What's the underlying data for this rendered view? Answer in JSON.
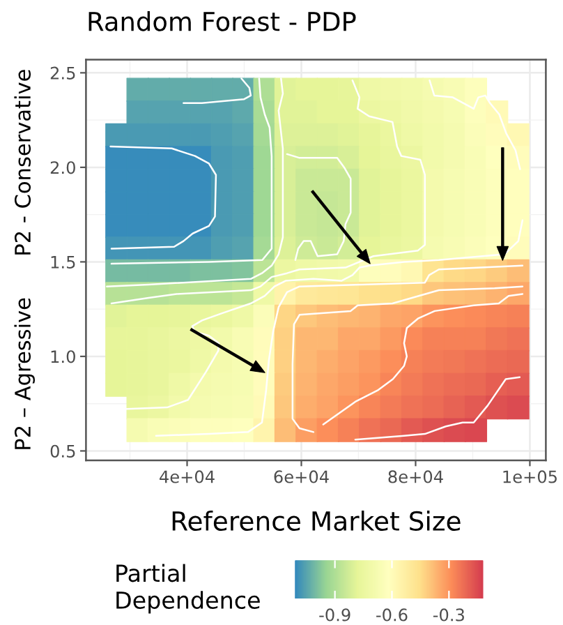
{
  "chart_data": {
    "type": "scatter",
    "title": "Random Forest - PDP",
    "xlabel": "Reference Market Size",
    "ylabel": "P2 – Agressive      P2 - Conservative",
    "clabel": "Partial\nDependence",
    "marker": "square",
    "grid": true,
    "xlim": [
      22300,
      102800
    ],
    "ylim": [
      0.45,
      2.57
    ],
    "xticks": [
      {
        "value": 40000,
        "label": "4e+04"
      },
      {
        "value": 60000,
        "label": "6e+04"
      },
      {
        "value": 80000,
        "label": "8e+04"
      },
      {
        "value": 100000,
        "label": "1e+05"
      }
    ],
    "yticks": [
      0.5,
      {
        "value": 1,
        "label": "1.0"
      },
      1.5,
      {
        "value": 2,
        "label": "2.0"
      },
      2.5
    ],
    "clim": [
      -1.11,
      -0.12
    ],
    "cticks": [
      -0.9,
      -0.6,
      -0.3
    ],
    "x": [
      27650,
      31350,
      35050,
      38750,
      42450,
      46150,
      49850,
      53550,
      57250,
      60950,
      64650,
      68350,
      72050,
      75750,
      79450,
      83150,
      86850,
      90550,
      94250,
      97950
    ],
    "series": [
      {
        "values": [
          null,
          2.41,
          2.41,
          2.41,
          2.41,
          2.41,
          2.41,
          2.41,
          2.41,
          2.41,
          2.41,
          2.41,
          2.41,
          2.41,
          2.41,
          2.41,
          2.41,
          2.41,
          null,
          null
        ],
        "cvalues": [
          null,
          -1.03,
          -1.03,
          -1.03,
          -1.03,
          -1.03,
          -1.03,
          -0.9,
          -0.79,
          -0.78,
          -0.78,
          -0.77,
          -0.72,
          -0.71,
          -0.7,
          -0.68,
          -0.66,
          -0.63,
          null,
          null
        ],
        "colors": [
          null,
          "#64ada9",
          "#64ada9",
          "#64ada9",
          "#64ada9",
          "#64ada9",
          "#64ada9",
          "#aede95",
          "#e1f398",
          "#e6f598",
          "#e6f598",
          "#e8f69a",
          "#eff9a6",
          "#f1f9a9",
          "#f2faab",
          "#f5fbb0",
          "#f8fcb4",
          "#fdfebb",
          null,
          null
        ]
      },
      {
        "values": [
          null,
          2.29,
          2.29,
          2.29,
          2.29,
          2.29,
          2.29,
          2.29,
          2.29,
          2.29,
          2.29,
          2.29,
          2.29,
          2.29,
          2.29,
          2.29,
          2.29,
          2.29,
          2.29,
          null
        ],
        "cvalues": [
          null,
          -1.05,
          -1.05,
          -1.05,
          -1.05,
          -1.05,
          -1.04,
          -0.91,
          -0.79,
          -0.79,
          -0.78,
          -0.78,
          -0.74,
          -0.73,
          -0.71,
          -0.69,
          -0.67,
          -0.63,
          -0.59,
          null
        ],
        "colors": [
          null,
          "#57a4ae",
          "#57a4ae",
          "#57a4ae",
          "#57a4ae",
          "#57a4ae",
          "#5ea9ac",
          "#a9dc95",
          "#e1f398",
          "#e1f398",
          "#e6f598",
          "#e6f598",
          "#ecf7a1",
          "#eef8a4",
          "#f1f9a9",
          "#f4faad",
          "#f7fcb2",
          "#fdfebb",
          "#fffab7",
          null
        ]
      },
      {
        "values": [
          2.17,
          2.17,
          2.17,
          2.17,
          2.17,
          2.17,
          2.17,
          2.17,
          2.17,
          2.17,
          2.17,
          2.17,
          2.17,
          2.17,
          2.17,
          2.17,
          2.17,
          2.17,
          2.17,
          2.17
        ],
        "cvalues": [
          -1.07,
          -1.07,
          -1.07,
          -1.07,
          -1.07,
          -1.06,
          -1.05,
          -0.92,
          -0.8,
          -0.8,
          -0.8,
          -0.79,
          -0.77,
          -0.75,
          -0.72,
          -0.7,
          -0.68,
          -0.64,
          -0.6,
          -0.58
        ],
        "colors": [
          "#4b9bb3",
          "#4b9bb3",
          "#4b9bb3",
          "#4b9bb3",
          "#4b9bb3",
          "#519fb1",
          "#57a4ae",
          "#a5da95",
          "#ddf198",
          "#ddf198",
          "#ddf198",
          "#e1f398",
          "#e8f69a",
          "#ebf79f",
          "#eff9a6",
          "#f2faab",
          "#f5fbb0",
          "#fbfdb9",
          "#fffcba",
          "#fff8b4"
        ]
      },
      {
        "values": [
          2.05,
          2.05,
          2.05,
          2.05,
          2.05,
          2.05,
          2.05,
          2.05,
          2.05,
          2.05,
          2.05,
          2.05,
          2.05,
          2.05,
          2.05,
          2.05,
          2.05,
          2.05,
          2.05,
          2.05
        ],
        "cvalues": [
          -1.1,
          -1.1,
          -1.1,
          -1.1,
          -1.1,
          -1.07,
          -1.06,
          -0.93,
          -0.81,
          -0.82,
          -0.82,
          -0.81,
          -0.78,
          -0.76,
          -0.74,
          -0.7,
          -0.68,
          -0.65,
          -0.62,
          -0.6
        ],
        "colors": [
          "#388dbb",
          "#388dbb",
          "#388dbb",
          "#388dbb",
          "#388dbb",
          "#4b9bb3",
          "#519fb1",
          "#a0d894",
          "#d8ef97",
          "#d3ed97",
          "#d3ed97",
          "#d8ef97",
          "#e6f598",
          "#e9f69d",
          "#ecf7a1",
          "#f2faab",
          "#f5fbb0",
          "#fafdb7",
          "#feffbe",
          "#fffcba"
        ]
      },
      {
        "values": [
          1.93,
          1.93,
          1.93,
          1.93,
          1.93,
          1.93,
          1.93,
          1.93,
          1.93,
          1.93,
          1.93,
          1.93,
          1.93,
          1.93,
          1.93,
          1.93,
          1.93,
          1.93,
          1.93,
          1.93
        ],
        "cvalues": [
          -1.1,
          -1.1,
          -1.1,
          -1.1,
          -1.1,
          -1.07,
          -1.06,
          -0.93,
          -0.81,
          -0.84,
          -0.84,
          -0.84,
          -0.79,
          -0.77,
          -0.75,
          -0.69,
          -0.67,
          -0.65,
          -0.63,
          -0.61
        ],
        "colors": [
          "#388dbb",
          "#388dbb",
          "#388dbb",
          "#388dbb",
          "#388dbb",
          "#4b9bb3",
          "#519fb1",
          "#a0d894",
          "#d8ef97",
          "#cae997",
          "#cae997",
          "#cae997",
          "#e1f398",
          "#e8f69a",
          "#ebf79f",
          "#f4faad",
          "#f7fcb2",
          "#fafdb7",
          "#fdfebb",
          "#fffebd"
        ]
      },
      {
        "values": [
          1.81,
          1.81,
          1.81,
          1.81,
          1.81,
          1.81,
          1.81,
          1.81,
          1.81,
          1.81,
          1.81,
          1.81,
          1.81,
          1.81,
          1.81,
          1.81,
          1.81,
          1.81,
          1.81,
          1.81
        ],
        "cvalues": [
          -1.1,
          -1.1,
          -1.1,
          -1.1,
          -1.1,
          -1.07,
          -1.06,
          -0.93,
          -0.81,
          -0.84,
          -0.85,
          -0.84,
          -0.79,
          -0.77,
          -0.75,
          -0.69,
          -0.67,
          -0.65,
          -0.63,
          -0.61
        ],
        "colors": [
          "#388dbb",
          "#388dbb",
          "#388dbb",
          "#388dbb",
          "#388dbb",
          "#4b9bb3",
          "#519fb1",
          "#a0d894",
          "#d8ef97",
          "#cae997",
          "#c5e796",
          "#cae997",
          "#e1f398",
          "#e8f69a",
          "#ebf79f",
          "#f4faad",
          "#f7fcb2",
          "#fafdb7",
          "#fdfebb",
          "#fffebd"
        ]
      },
      {
        "values": [
          1.69,
          1.69,
          1.69,
          1.69,
          1.69,
          1.69,
          1.69,
          1.69,
          1.69,
          1.69,
          1.69,
          1.69,
          1.69,
          1.69,
          1.69,
          1.69,
          1.69,
          1.69,
          1.69,
          1.69
        ],
        "cvalues": [
          -1.1,
          -1.1,
          -1.1,
          -1.1,
          -1.1,
          -1.07,
          -1.06,
          -0.93,
          -0.81,
          -0.84,
          -0.85,
          -0.84,
          -0.79,
          -0.77,
          -0.75,
          -0.69,
          -0.67,
          -0.65,
          -0.63,
          -0.61
        ],
        "colors": [
          "#388dbb",
          "#388dbb",
          "#388dbb",
          "#388dbb",
          "#388dbb",
          "#4b9bb3",
          "#519fb1",
          "#a0d894",
          "#d8ef97",
          "#cae997",
          "#c5e796",
          "#cae997",
          "#e1f398",
          "#e8f69a",
          "#ebf79f",
          "#f4faad",
          "#f7fcb2",
          "#fafdb7",
          "#fdfebb",
          "#fffebd"
        ]
      },
      {
        "values": [
          1.57,
          1.57,
          1.57,
          1.57,
          1.57,
          1.57,
          1.57,
          1.57,
          1.57,
          1.57,
          1.57,
          1.57,
          1.57,
          1.57,
          1.57,
          1.57,
          1.57,
          1.57,
          1.57,
          1.57
        ],
        "cvalues": [
          -1.08,
          -1.08,
          -1.08,
          -1.08,
          -1.08,
          -1.06,
          -1.05,
          -0.92,
          -0.8,
          -0.83,
          -0.84,
          -0.82,
          -0.78,
          -0.76,
          -0.74,
          -0.68,
          -0.66,
          -0.64,
          -0.62,
          -0.6
        ],
        "colors": [
          "#4596b6",
          "#4596b6",
          "#4596b6",
          "#4596b6",
          "#4596b6",
          "#519fb1",
          "#57a4ae",
          "#a5da95",
          "#ddf198",
          "#cfeb97",
          "#cae997",
          "#d3ed97",
          "#e6f598",
          "#e9f69d",
          "#ecf7a1",
          "#f5fbb0",
          "#f8fcb4",
          "#fbfdb9",
          "#feffbe",
          "#fffcba"
        ]
      },
      {
        "values": [
          1.45,
          1.45,
          1.45,
          1.45,
          1.45,
          1.45,
          1.45,
          1.45,
          1.45,
          1.45,
          1.45,
          1.45,
          1.45,
          1.45,
          1.45,
          1.45,
          1.45,
          1.45,
          1.45,
          1.45
        ],
        "cvalues": [
          -1.0,
          -1.0,
          -1.0,
          -1.0,
          -0.99,
          -0.99,
          -0.98,
          -0.87,
          -0.74,
          -0.72,
          -0.71,
          -0.7,
          -0.63,
          -0.6,
          -0.58,
          -0.47,
          -0.44,
          -0.43,
          -0.41,
          -0.38
        ],
        "colors": [
          "#77bba2",
          "#77bba2",
          "#77bba2",
          "#77bba2",
          "#7dc09f",
          "#7dc09f",
          "#83c59d",
          "#bce496",
          "#ecf7a1",
          "#eff9a6",
          "#f1f9a9",
          "#f2faab",
          "#fdfebb",
          "#fffcba",
          "#fff8b4",
          "#fee491",
          "#fedb88",
          "#fed685",
          "#fecc7f",
          "#fdbd76"
        ]
      },
      {
        "values": [
          1.33,
          1.33,
          1.33,
          1.33,
          1.33,
          1.33,
          1.33,
          1.33,
          1.33,
          1.33,
          1.33,
          1.33,
          1.33,
          1.33,
          1.33,
          1.33,
          1.33,
          1.33,
          1.33,
          1.33
        ],
        "cvalues": [
          -0.88,
          -0.88,
          -0.88,
          -0.87,
          -0.87,
          -0.87,
          -0.85,
          -0.72,
          -0.55,
          -0.5,
          -0.49,
          -0.48,
          -0.46,
          -0.45,
          -0.44,
          -0.4,
          -0.39,
          -0.38,
          -0.36,
          -0.34
        ],
        "colors": [
          "#b7e296",
          "#b7e296",
          "#b7e296",
          "#bce496",
          "#bce496",
          "#bce496",
          "#c5e796",
          "#eff9a6",
          "#fff3ab",
          "#fee99b",
          "#fee898",
          "#fee694",
          "#fee28e",
          "#fee08b",
          "#fedb88",
          "#fdc77c",
          "#fdc279",
          "#fdbd76",
          "#fdb370",
          "#fda96a"
        ]
      },
      {
        "values": [
          1.21,
          1.21,
          1.21,
          1.21,
          1.21,
          1.21,
          1.21,
          1.21,
          1.21,
          1.21,
          1.21,
          1.21,
          1.21,
          1.21,
          1.21,
          1.21,
          1.21,
          1.21,
          1.21,
          1.21
        ],
        "cvalues": [
          -0.79,
          -0.78,
          -0.78,
          -0.77,
          -0.76,
          -0.75,
          -0.72,
          -0.64,
          -0.43,
          -0.4,
          -0.38,
          -0.37,
          -0.36,
          -0.34,
          -0.33,
          -0.3,
          -0.29,
          -0.28,
          -0.27,
          -0.26
        ],
        "colors": [
          "#e1f398",
          "#e6f598",
          "#e6f598",
          "#e8f69a",
          "#e9f69d",
          "#ebf79f",
          "#eff9a6",
          "#fbfdb9",
          "#fed685",
          "#fdc77c",
          "#fdbd76",
          "#fdb873",
          "#fdb370",
          "#fda96a",
          "#fda467",
          "#fc955e",
          "#fc905b",
          "#fb8b59",
          "#f88658",
          "#f68157"
        ]
      },
      {
        "values": [
          1.09,
          1.09,
          1.09,
          1.09,
          1.09,
          1.09,
          1.09,
          1.09,
          1.09,
          1.09,
          1.09,
          1.09,
          1.09,
          1.09,
          1.09,
          1.09,
          1.09,
          1.09,
          1.09,
          1.09
        ],
        "cvalues": [
          -0.77,
          -0.77,
          -0.76,
          -0.74,
          -0.73,
          -0.7,
          -0.66,
          -0.6,
          -0.42,
          -0.37,
          -0.37,
          -0.34,
          -0.34,
          -0.31,
          -0.28,
          -0.26,
          -0.26,
          -0.26,
          -0.24,
          -0.23
        ],
        "colors": [
          "#e8f69a",
          "#e8f69a",
          "#e9f69d",
          "#ecf7a1",
          "#eef8a4",
          "#f2faab",
          "#f8fcb4",
          "#fffcba",
          "#fed182",
          "#fdb873",
          "#fdb873",
          "#fda96a",
          "#fda96a",
          "#fc9a61",
          "#fb8b59",
          "#f68157",
          "#f68157",
          "#f68157",
          "#f17756",
          "#ef7356"
        ]
      },
      {
        "values": [
          0.97,
          0.97,
          0.97,
          0.97,
          0.97,
          0.97,
          0.97,
          0.97,
          0.97,
          0.97,
          0.97,
          0.97,
          0.97,
          0.97,
          0.97,
          0.97,
          0.97,
          0.97,
          0.97,
          0.97
        ],
        "cvalues": [
          -0.78,
          -0.77,
          -0.76,
          -0.75,
          -0.72,
          -0.69,
          -0.67,
          -0.6,
          -0.42,
          -0.37,
          -0.35,
          -0.33,
          -0.31,
          -0.29,
          -0.26,
          -0.25,
          -0.24,
          -0.23,
          -0.22,
          -0.21
        ],
        "colors": [
          "#e6f598",
          "#e8f69a",
          "#e9f69d",
          "#ebf79f",
          "#eff9a6",
          "#f4faad",
          "#f7fcb2",
          "#fffcba",
          "#fed182",
          "#fdb873",
          "#fdae6d",
          "#fda467",
          "#fc9a61",
          "#fc905b",
          "#f68157",
          "#f47c57",
          "#f17756",
          "#ef7356",
          "#ed6e55",
          "#ea6954"
        ]
      },
      {
        "values": [
          0.85,
          0.85,
          0.85,
          0.85,
          0.85,
          0.85,
          0.85,
          0.85,
          0.85,
          0.85,
          0.85,
          0.85,
          0.85,
          0.85,
          0.85,
          0.85,
          0.85,
          0.85,
          0.85,
          0.85
        ],
        "cvalues": [
          -0.78,
          -0.77,
          -0.76,
          -0.72,
          -0.69,
          -0.68,
          -0.67,
          -0.6,
          -0.41,
          -0.36,
          -0.34,
          -0.32,
          -0.3,
          -0.27,
          -0.25,
          -0.23,
          -0.22,
          -0.21,
          -0.19,
          -0.18
        ],
        "colors": [
          "#e6f598",
          "#e8f69a",
          "#e9f69d",
          "#eff9a6",
          "#f4faad",
          "#f5fbb0",
          "#f7fcb2",
          "#fffcba",
          "#fecc7f",
          "#fdb370",
          "#fda96a",
          "#fc9f64",
          "#fc955e",
          "#f88658",
          "#f47c57",
          "#ef7356",
          "#ed6e55",
          "#ea6954",
          "#e66053",
          "#e35b53"
        ]
      },
      {
        "values": [
          null,
          0.73,
          0.73,
          0.73,
          0.73,
          0.73,
          0.73,
          0.73,
          0.73,
          0.73,
          0.73,
          0.73,
          0.73,
          0.73,
          0.73,
          0.73,
          0.73,
          0.73,
          0.73,
          0.73
        ],
        "cvalues": [
          null,
          -0.76,
          -0.74,
          -0.7,
          -0.68,
          -0.67,
          -0.66,
          -0.59,
          -0.4,
          -0.35,
          -0.33,
          -0.3,
          -0.27,
          -0.25,
          -0.23,
          -0.22,
          -0.2,
          -0.18,
          -0.16,
          -0.15
        ],
        "colors": [
          null,
          "#e9f69d",
          "#ecf7a1",
          "#f2faab",
          "#f5fbb0",
          "#f7fcb2",
          "#f8fcb4",
          "#fffab7",
          "#fdc77c",
          "#fdae6d",
          "#fda467",
          "#fc955e",
          "#f88658",
          "#f47c57",
          "#ef7356",
          "#ed6e55",
          "#e86454",
          "#e35b53",
          "#de5151",
          "#dc4c51"
        ]
      },
      {
        "values": [
          null,
          0.61,
          0.61,
          0.61,
          0.61,
          0.61,
          0.61,
          0.61,
          0.61,
          0.61,
          0.61,
          0.61,
          0.61,
          0.61,
          0.61,
          0.61,
          0.61,
          0.61,
          null,
          null
        ],
        "cvalues": [
          null,
          -0.68,
          -0.65,
          -0.64,
          -0.63,
          -0.63,
          -0.62,
          -0.56,
          -0.38,
          -0.32,
          -0.29,
          -0.26,
          -0.23,
          -0.21,
          -0.18,
          -0.16,
          -0.15,
          -0.14,
          null,
          null
        ],
        "colors": [
          null,
          "#f5fbb0",
          "#fafdb7",
          "#fbfdb9",
          "#fdfebb",
          "#fdfebb",
          "#feffbe",
          "#fff5ae",
          "#fdbd76",
          "#fc9f64",
          "#fc905b",
          "#f68157",
          "#ef7356",
          "#ea6954",
          "#e35b53",
          "#de5151",
          "#dc4c51",
          "#da4850",
          null,
          null
        ]
      },
      {
        "type": "line",
        "color": "#ffffff",
        "marker": "none",
        "x": [
          26590,
          37320,
          41390,
          43830,
          45050,
          44880,
          43830,
          40980,
          39370,
          37730,
          26760
        ],
        "values": [
          2.11,
          2.1,
          2.06,
          2.02,
          1.96,
          1.74,
          1.69,
          1.65,
          1.61,
          1.58,
          1.57
        ]
      },
      {
        "type": "line",
        "color": "#ffffff",
        "marker": "none",
        "x": [
          49510,
          50900,
          51150,
          49930,
          46270,
          42610,
          39370
        ],
        "values": [
          2.47,
          2.42,
          2.38,
          2.36,
          2.35,
          2.34,
          2.34
        ]
      },
      {
        "type": "line",
        "color": "#ffffff",
        "marker": "none",
        "x": [
          52610,
          52850,
          53590,
          54440,
          54800,
          54800,
          53170,
          43830,
          26760
        ],
        "values": [
          2.47,
          2.37,
          2.28,
          2.21,
          2.06,
          1.57,
          1.51,
          1.5,
          1.49
        ]
      },
      {
        "type": "line",
        "color": "#ffffff",
        "marker": "none",
        "x": [
          25950,
          33270,
          51150,
          53100,
          54800,
          56020,
          56760,
          56760,
          56020,
          56760,
          56440
        ],
        "values": [
          1.37,
          1.38,
          1.41,
          1.44,
          1.48,
          1.54,
          1.63,
          2.1,
          2.3,
          2.39,
          2.47
        ]
      },
      {
        "type": "line",
        "color": "#ffffff",
        "marker": "none",
        "x": [
          26760,
          33270,
          38150,
          51150,
          52850,
          54800,
          57490,
          59680,
          67730,
          72610,
          80410,
          81630,
          81630,
          80830,
          77490,
          76760,
          75950,
          71880,
          69850,
          70170,
          68950
        ],
        "values": [
          1.28,
          1.31,
          1.33,
          1.35,
          1.37,
          1.42,
          1.44,
          1.46,
          1.47,
          1.53,
          1.56,
          1.59,
          1.96,
          2.04,
          2.06,
          2.11,
          2.24,
          2.27,
          2.31,
          2.37,
          2.46
        ]
      },
      {
        "type": "line",
        "color": "#ffffff",
        "marker": "none",
        "x": [
          57490,
          59680,
          63340,
          66270,
          67490,
          68630,
          68630,
          67730,
          67410,
          66270,
          62850,
          61630,
          60410,
          59440,
          58950
        ],
        "values": [
          2.07,
          2.05,
          2.05,
          2.05,
          2.0,
          1.94,
          1.76,
          1.7,
          1.61,
          1.54,
          1.53,
          1.61,
          1.61,
          1.57,
          1.51
        ]
      },
      {
        "type": "line",
        "color": "#ffffff",
        "marker": "none",
        "x": [
          82440,
          83270,
          86510,
          90170,
          90980,
          92200,
          93020,
          94640,
          95860,
          97490,
          98290
        ],
        "values": [
          2.46,
          2.38,
          2.37,
          2.31,
          2.37,
          2.38,
          2.34,
          2.28,
          2.18,
          2.09,
          1.99
        ]
      },
      {
        "type": "line",
        "color": "#ffffff",
        "marker": "none",
        "x": [
          27980,
          36510,
          40170,
          43340,
          45460,
          45540,
          43830,
          41390,
          40900,
          42610,
          46270,
          51150,
          53590,
          55290,
          57240,
          62120,
          67000,
          68950,
          70170,
          71880,
          77980,
          84070,
          95540,
          97980,
          98710
        ],
        "values": [
          0.72,
          0.73,
          0.77,
          0.92,
          1.03,
          1.07,
          1.11,
          1.13,
          1.16,
          1.19,
          1.23,
          1.28,
          1.32,
          1.37,
          1.4,
          1.41,
          1.4,
          1.43,
          1.47,
          1.48,
          1.5,
          1.51,
          1.54,
          1.61,
          1.72
        ]
      },
      {
        "type": "line",
        "color": "#ffffff",
        "marker": "none",
        "x": [
          34560,
          43830,
          50660,
          53100,
          53830,
          54320,
          55050,
          56020,
          57490,
          59680,
          70660,
          81630,
          82370,
          84070,
          91390,
          98710
        ],
        "values": [
          0.58,
          0.59,
          0.6,
          0.65,
          0.82,
          0.98,
          1.13,
          1.26,
          1.34,
          1.37,
          1.38,
          1.39,
          1.43,
          1.46,
          1.47,
          1.48
        ]
      },
      {
        "type": "line",
        "color": "#ffffff",
        "marker": "none",
        "x": [
          62120,
          59680,
          58460,
          58460,
          58710,
          59680,
          68630,
          69850,
          75950,
          84070,
          93830,
          98710
        ],
        "values": [
          0.6,
          0.62,
          0.67,
          0.96,
          1.17,
          1.22,
          1.24,
          1.27,
          1.28,
          1.35,
          1.36,
          1.37
        ]
      },
      {
        "type": "line",
        "color": "#ffffff",
        "marker": "none",
        "x": [
          63830,
          69440,
          73340,
          76020,
          77980,
          78460,
          77980,
          78460,
          80410,
          83340,
          90170,
          94560,
          96270,
          98710
        ],
        "values": [
          0.64,
          0.76,
          0.82,
          0.88,
          0.95,
          1.0,
          1.07,
          1.15,
          1.2,
          1.24,
          1.27,
          1.28,
          1.32,
          1.33
        ]
      },
      {
        "type": "line",
        "color": "#ffffff",
        "marker": "none",
        "x": [
          69440,
          77980,
          81630,
          85290,
          88220,
          90170,
          92610,
          95780,
          98220
        ],
        "values": [
          0.56,
          0.58,
          0.59,
          0.63,
          0.65,
          0.65,
          0.74,
          0.88,
          0.89
        ]
      }
    ]
  }
}
